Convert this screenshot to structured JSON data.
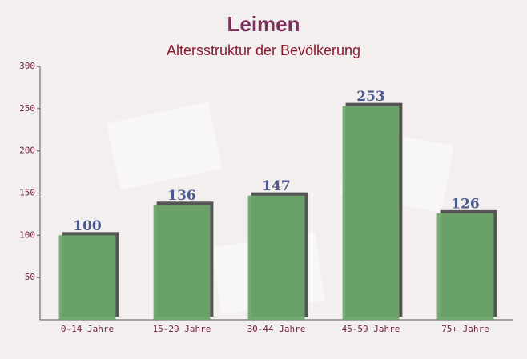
{
  "chart_data": {
    "type": "bar",
    "title": "Leimen",
    "subtitle": "Altersstruktur der Bevölkerung",
    "categories": [
      "0-14 Jahre",
      "15-29 Jahre",
      "30-44 Jahre",
      "45-59 Jahre",
      "75+ Jahre"
    ],
    "values": [
      100,
      136,
      147,
      253,
      126
    ],
    "color": "#6aa56a",
    "ylim": [
      0,
      300
    ],
    "yticks": [
      50,
      100,
      150,
      200,
      250,
      300
    ],
    "grid": false
  }
}
